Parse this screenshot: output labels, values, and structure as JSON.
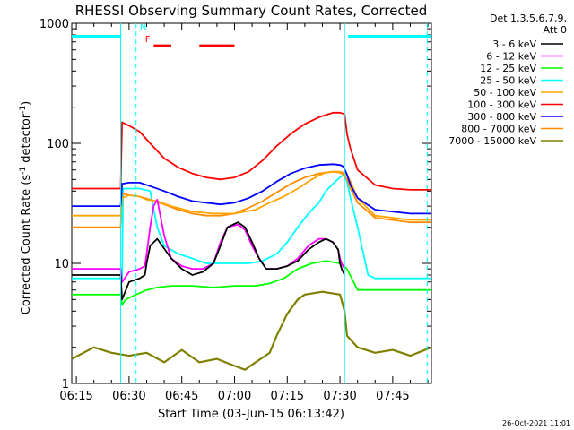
{
  "chart_data": {
    "type": "line",
    "title": "RHESSI Observing Summary Count Rates, Corrected",
    "ylabel_main": "Corrected Count Rate (s",
    "ylabel_sup1": "-1",
    "ylabel_mid": " detector",
    "ylabel_sup2": "-1",
    "ylabel_end": ")",
    "xlabel": "Start Time (03-Jun-15 06:13:42)",
    "timestamp": "26-Oct-2021 11:01",
    "x_ticks": [
      "06:15",
      "06:30",
      "06:45",
      "07:00",
      "07:15",
      "07:30",
      "07:45"
    ],
    "x_tick_minutes": [
      15,
      30,
      45,
      60,
      75,
      90,
      105
    ],
    "xlim_minutes": [
      13.7,
      116
    ],
    "y_scale": "log",
    "ylim": [
      1,
      1000
    ],
    "y_ticks": [
      "1",
      "10",
      "100",
      "1000"
    ],
    "y_tick_values": [
      1,
      10,
      100,
      1000
    ],
    "legend_title": [
      "Det 1,3,5,6,7,9,",
      "Att 0"
    ],
    "legend_placement": "right",
    "series": [
      {
        "name": "3 - 6 keV",
        "color": "#000000",
        "x": [
          13.7,
          25,
          27.6,
          28,
          30,
          33,
          34.5,
          35,
          36,
          38,
          42,
          45,
          48,
          51,
          54,
          56,
          58,
          61,
          63,
          65,
          67,
          69,
          72,
          75,
          78,
          81,
          84,
          86,
          88,
          89.5,
          90,
          90.5,
          91.3
        ],
        "y": [
          8,
          8,
          8,
          5,
          7,
          7.5,
          8,
          10,
          14,
          16,
          11,
          9,
          8,
          8.5,
          10,
          14,
          20,
          22,
          20,
          15,
          11,
          9,
          9,
          9.5,
          10.5,
          13,
          15,
          16,
          15,
          13,
          10,
          9,
          8
        ]
      },
      {
        "name": "6 - 12 keV",
        "color": "#ff00ff",
        "x": [
          13.7,
          25,
          27.6,
          28,
          30,
          33,
          34.5,
          35,
          36,
          37,
          38,
          40,
          42,
          45,
          48,
          51,
          54,
          56,
          58,
          61,
          63,
          65,
          67,
          69,
          72,
          75,
          78,
          81,
          84,
          86,
          88,
          89.5,
          90,
          90.5,
          91.3
        ],
        "y": [
          9,
          9,
          9,
          7,
          8.5,
          9,
          9.5,
          12,
          20,
          30,
          34,
          17,
          11,
          9.5,
          9,
          9,
          10,
          15,
          20,
          21,
          19,
          14,
          11,
          9,
          9,
          9.5,
          11,
          14,
          16,
          16,
          15,
          13,
          11,
          10,
          9
        ]
      },
      {
        "name": "12 - 25 keV",
        "color": "#00ff00",
        "x": [
          13.7,
          25,
          27.6,
          28,
          29,
          32,
          35,
          38,
          42,
          48,
          54,
          60,
          66,
          70,
          74,
          78,
          82,
          86,
          90,
          92,
          95,
          100,
          110,
          116
        ],
        "y": [
          5.5,
          5.5,
          5.5,
          4.5,
          5,
          5.5,
          6,
          6.3,
          6.5,
          6.5,
          6.3,
          6.5,
          6.5,
          6.8,
          7.5,
          9,
          10,
          10.5,
          10,
          9,
          6,
          6,
          6,
          6
        ]
      },
      {
        "name": "25 - 50 keV",
        "color": "#00ffff",
        "x": [
          13.7,
          25,
          28,
          28.3,
          30,
          33,
          36,
          38,
          40,
          44,
          48,
          52,
          56,
          60,
          64,
          68,
          72,
          75,
          78,
          81,
          84,
          86,
          88,
          90,
          91,
          92,
          93,
          95,
          98,
          100,
          104,
          110,
          116
        ],
        "y": [
          7.5,
          7.5,
          7.5,
          42,
          42,
          42,
          40,
          20,
          14,
          12,
          11,
          10,
          10,
          10,
          10,
          10.5,
          12,
          15,
          20,
          26,
          32,
          40,
          46,
          52,
          55,
          48,
          35,
          20,
          8,
          7.5,
          7.5,
          7.5,
          7.5
        ]
      },
      {
        "name": "50 - 100 keV",
        "color": "#ffa500",
        "x": [
          13.7,
          25,
          27.6,
          28,
          30,
          33,
          35,
          38,
          42,
          48,
          54,
          60,
          66,
          70,
          74,
          78,
          82,
          84,
          86,
          88,
          90,
          91,
          92,
          93,
          95,
          100,
          110,
          116
        ],
        "y": [
          25,
          25,
          25,
          35,
          37,
          36,
          34,
          33,
          30,
          27,
          26,
          26,
          28,
          32,
          36,
          42,
          50,
          54,
          57,
          58,
          58,
          57,
          54,
          48,
          35,
          25,
          23,
          23
        ]
      },
      {
        "name": "100 - 300 keV",
        "color": "#ff0000",
        "x": [
          13.7,
          25,
          27.6,
          28,
          30,
          33,
          36,
          40,
          44,
          48,
          52,
          56,
          60,
          64,
          68,
          72,
          76,
          80,
          84,
          88,
          90,
          91.3,
          92,
          93,
          95,
          100,
          105,
          110,
          116
        ],
        "y": [
          42,
          42,
          42,
          150,
          140,
          125,
          100,
          75,
          63,
          56,
          52,
          50,
          52,
          58,
          72,
          95,
          120,
          145,
          165,
          180,
          180,
          175,
          120,
          90,
          60,
          45,
          42,
          41,
          41
        ]
      },
      {
        "name": "300 - 800 keV",
        "color": "#0000ff",
        "x": [
          13.7,
          25,
          27.6,
          28,
          30,
          33,
          36,
          40,
          44,
          48,
          52,
          56,
          60,
          64,
          68,
          72,
          76,
          80,
          84,
          88,
          90,
          91,
          92,
          93,
          95,
          100,
          110,
          116
        ],
        "y": [
          30,
          30,
          30,
          46,
          47,
          47,
          44,
          40,
          36,
          33,
          32,
          31,
          32,
          35,
          40,
          48,
          56,
          62,
          66,
          67,
          66,
          64,
          55,
          45,
          35,
          28,
          26,
          26
        ]
      },
      {
        "name": "800 - 7000 keV",
        "color": "#ff8c00",
        "x": [
          13.7,
          25,
          27.6,
          28,
          30,
          33,
          36,
          40,
          44,
          48,
          52,
          56,
          60,
          64,
          68,
          72,
          76,
          80,
          84,
          88,
          90,
          91,
          92,
          93,
          95,
          100,
          110,
          116
        ],
        "y": [
          20,
          20,
          20,
          38,
          37,
          36,
          34,
          31,
          28,
          26,
          25,
          25,
          26,
          29,
          33,
          39,
          46,
          52,
          56,
          58,
          57,
          55,
          50,
          42,
          32,
          24,
          22,
          22
        ]
      },
      {
        "name": "7000 - 15000 keV",
        "color": "#808000",
        "x": [
          13.7,
          20,
          25,
          30,
          35,
          40,
          45,
          50,
          55,
          60,
          63,
          66,
          70,
          72,
          75,
          78,
          80,
          85,
          90,
          91.3,
          92,
          95,
          100,
          105,
          110,
          116
        ],
        "y": [
          1.6,
          2,
          1.8,
          1.7,
          1.8,
          1.5,
          1.9,
          1.5,
          1.6,
          1.4,
          1.3,
          1.5,
          1.8,
          2.5,
          3.8,
          5,
          5.5,
          5.8,
          5.5,
          4,
          2.5,
          2,
          1.8,
          1.9,
          1.7,
          2
        ]
      }
    ],
    "extra_lines": [
      {
        "kind": "attenuator-state",
        "color": "#00ffff",
        "segments": [
          [
            [
              13.7,
              780
            ],
            [
              27.8,
              780
            ]
          ],
          [
            [
              92.3,
              780
            ],
            [
              116,
              780
            ]
          ]
        ]
      },
      {
        "kind": "vertical-solid",
        "color": "#00ffff",
        "x": [
          27.6,
          91.3
        ]
      },
      {
        "kind": "vertical-dashed",
        "color": "#00ffff",
        "x": [
          32.0,
          114.8
        ]
      },
      {
        "kind": "flare-flag",
        "color": "#ff0000",
        "segments": [
          [
            [
              37,
              650
            ],
            [
              42,
              650
            ]
          ],
          [
            [
              50,
              650
            ],
            [
              60,
              650
            ]
          ]
        ]
      }
    ],
    "flags": [
      {
        "text": "N",
        "color": "#00ffff",
        "x": 34.0,
        "y": 870
      },
      {
        "text": "F",
        "color": "#ff0000",
        "x": 35.3,
        "y": 700
      }
    ]
  }
}
